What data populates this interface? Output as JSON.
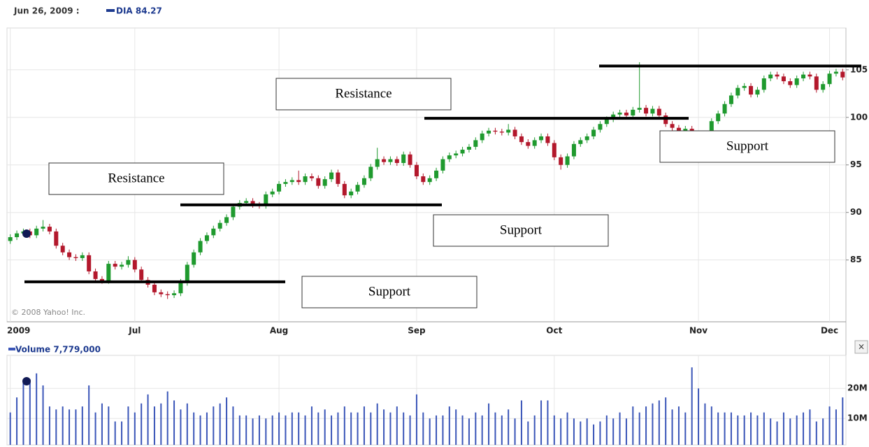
{
  "header": {
    "date": "Jun 26, 2009 :",
    "symbol": "DIA 84.27"
  },
  "chart_data": [
    {
      "type": "candlestick",
      "up_color": "#1f9a2e",
      "down_color": "#b3182c",
      "grid": true,
      "copyright": "© 2008 Yahoo! Inc.",
      "categories": [
        "2009",
        null,
        null,
        null,
        null,
        null,
        null,
        null,
        null,
        null,
        null,
        null,
        null,
        null,
        null,
        null,
        null,
        null,
        null,
        "Jul",
        null,
        null,
        null,
        null,
        null,
        null,
        null,
        null,
        null,
        null,
        null,
        null,
        null,
        null,
        null,
        null,
        null,
        null,
        null,
        null,
        null,
        "Aug",
        null,
        null,
        null,
        null,
        null,
        null,
        null,
        null,
        null,
        null,
        null,
        null,
        null,
        null,
        null,
        null,
        null,
        null,
        null,
        null,
        "Sep",
        null,
        null,
        null,
        null,
        null,
        null,
        null,
        null,
        null,
        null,
        null,
        null,
        null,
        null,
        null,
        null,
        null,
        null,
        null,
        null,
        "Oct",
        null,
        null,
        null,
        null,
        null,
        null,
        null,
        null,
        null,
        null,
        null,
        null,
        null,
        null,
        null,
        null,
        null,
        null,
        null,
        null,
        null,
        "Nov",
        null,
        null,
        null,
        null,
        null,
        null,
        null,
        null,
        null,
        null,
        null,
        null,
        null,
        null,
        null,
        null,
        null,
        null,
        null,
        "Dec",
        null,
        null
      ],
      "open": [
        87.0,
        87.4,
        87.8,
        88.0,
        87.6,
        88.3,
        88.5,
        88.0,
        86.5,
        85.8,
        85.3,
        85.2,
        85.5,
        83.8,
        83.0,
        82.8,
        84.6,
        84.3,
        84.5,
        85.0,
        84.0,
        82.9,
        82.4,
        81.6,
        81.4,
        81.3,
        81.5,
        82.6,
        84.5,
        85.8,
        87.0,
        87.6,
        88.3,
        88.9,
        89.5,
        90.6,
        91.0,
        91.2,
        90.8,
        90.7,
        91.9,
        92.2,
        93.0,
        93.2,
        93.4,
        93.2,
        93.8,
        93.6,
        92.8,
        93.5,
        94.2,
        93.0,
        91.8,
        92.2,
        92.9,
        93.6,
        94.8,
        95.6,
        95.3,
        95.6,
        95.2,
        96.1,
        95.0,
        93.8,
        93.2,
        93.6,
        94.4,
        95.6,
        96.0,
        96.2,
        96.6,
        96.9,
        97.6,
        98.3,
        98.6,
        98.5,
        98.4,
        98.7,
        98.0,
        97.4,
        97.0,
        97.6,
        98.0,
        97.3,
        95.8,
        95.0,
        95.9,
        97.2,
        97.6,
        98.0,
        98.7,
        99.3,
        99.8,
        100.3,
        100.5,
        100.2,
        100.8,
        101.0,
        100.4,
        100.9,
        100.2,
        99.3,
        98.9,
        98.3,
        98.8,
        97.2,
        97.6,
        98.3,
        99.6,
        100.4,
        101.4,
        102.3,
        103.1,
        103.3,
        102.4,
        102.9,
        104.1,
        104.5,
        104.3,
        103.8,
        103.4,
        104.1,
        104.5,
        104.3,
        102.9,
        103.5,
        104.6,
        104.8
      ],
      "high": [
        87.7,
        88.1,
        88.3,
        88.3,
        88.6,
        89.2,
        88.8,
        88.3,
        86.8,
        86.1,
        85.6,
        85.8,
        85.8,
        84.1,
        83.3,
        84.9,
        84.9,
        84.8,
        85.4,
        85.3,
        84.3,
        83.2,
        82.7,
        81.9,
        81.7,
        81.8,
        83.0,
        84.8,
        86.1,
        87.3,
        87.9,
        88.6,
        89.2,
        89.8,
        90.9,
        91.3,
        91.5,
        91.5,
        91.1,
        92.2,
        92.5,
        93.3,
        93.5,
        93.7,
        94.4,
        94.1,
        94.1,
        93.9,
        93.8,
        94.5,
        94.5,
        93.3,
        92.5,
        93.2,
        93.9,
        95.1,
        96.8,
        95.9,
        95.9,
        95.9,
        96.4,
        96.4,
        95.3,
        94.1,
        93.9,
        94.7,
        95.9,
        96.3,
        96.5,
        96.9,
        97.2,
        97.9,
        98.6,
        98.9,
        98.9,
        98.8,
        99.3,
        99.0,
        98.3,
        97.7,
        97.9,
        98.3,
        98.3,
        97.6,
        96.1,
        96.2,
        97.5,
        97.9,
        98.3,
        99.0,
        99.6,
        100.1,
        100.6,
        100.8,
        100.8,
        101.1,
        105.8,
        101.3,
        101.2,
        101.2,
        100.5,
        99.6,
        99.2,
        99.1,
        99.1,
        97.9,
        98.6,
        99.9,
        100.7,
        101.7,
        102.6,
        103.4,
        103.6,
        103.6,
        103.2,
        104.4,
        104.8,
        104.8,
        104.6,
        104.1,
        104.4,
        104.8,
        104.8,
        104.6,
        103.8,
        104.9,
        105.1,
        105.1
      ],
      "low": [
        86.7,
        87.1,
        87.5,
        87.3,
        87.3,
        88.0,
        87.7,
        86.2,
        85.5,
        85.0,
        84.9,
        84.9,
        83.5,
        82.7,
        82.5,
        82.5,
        84.0,
        84.0,
        84.2,
        83.7,
        82.6,
        82.1,
        81.3,
        81.1,
        80.9,
        81.0,
        81.2,
        82.3,
        84.2,
        85.5,
        86.7,
        87.3,
        88.0,
        88.6,
        89.2,
        90.3,
        90.7,
        90.5,
        90.4,
        90.4,
        91.6,
        91.9,
        92.7,
        92.9,
        92.9,
        92.9,
        93.3,
        92.5,
        92.5,
        93.2,
        92.7,
        91.5,
        91.5,
        91.9,
        92.6,
        93.3,
        94.5,
        95.0,
        95.0,
        94.9,
        94.9,
        94.7,
        93.5,
        92.9,
        92.9,
        93.3,
        94.1,
        95.3,
        95.7,
        95.9,
        96.3,
        96.6,
        97.3,
        98.0,
        98.2,
        98.1,
        98.1,
        97.7,
        97.1,
        96.7,
        96.7,
        97.3,
        97.0,
        95.5,
        94.5,
        94.7,
        95.6,
        96.9,
        97.3,
        97.7,
        98.4,
        99.0,
        99.5,
        100.0,
        99.9,
        99.9,
        100.5,
        100.1,
        100.1,
        99.9,
        99.0,
        98.6,
        98.0,
        98.0,
        96.9,
        96.9,
        97.3,
        98.0,
        99.3,
        100.1,
        101.1,
        102.0,
        102.8,
        102.1,
        102.1,
        102.6,
        103.8,
        104.0,
        103.5,
        103.1,
        103.1,
        103.8,
        104.0,
        102.6,
        102.6,
        103.2,
        104.3,
        103.9
      ],
      "close": [
        87.4,
        87.8,
        88.0,
        87.6,
        88.3,
        88.5,
        88.0,
        86.5,
        85.8,
        85.3,
        85.2,
        85.5,
        83.8,
        83.0,
        82.8,
        84.6,
        84.3,
        84.5,
        85.0,
        84.0,
        82.9,
        82.4,
        81.6,
        81.4,
        81.3,
        81.5,
        82.6,
        84.5,
        85.8,
        87.0,
        87.6,
        88.3,
        88.9,
        89.5,
        90.6,
        91.0,
        91.2,
        90.8,
        90.7,
        91.9,
        92.2,
        93.0,
        93.2,
        93.4,
        93.2,
        93.8,
        93.6,
        92.8,
        93.5,
        94.2,
        93.0,
        91.8,
        92.2,
        92.9,
        93.6,
        94.8,
        95.6,
        95.3,
        95.6,
        95.2,
        96.1,
        95.0,
        93.8,
        93.2,
        93.6,
        94.4,
        95.6,
        96.0,
        96.2,
        96.6,
        96.9,
        97.6,
        98.3,
        98.6,
        98.5,
        98.4,
        98.7,
        98.0,
        97.4,
        97.0,
        97.6,
        98.0,
        97.3,
        95.8,
        95.0,
        95.9,
        97.2,
        97.6,
        98.0,
        98.7,
        99.3,
        99.8,
        100.3,
        100.5,
        100.2,
        100.8,
        101.0,
        100.4,
        100.9,
        100.2,
        99.3,
        98.9,
        98.3,
        98.8,
        97.2,
        97.6,
        98.3,
        99.6,
        100.4,
        101.4,
        102.3,
        103.1,
        103.3,
        102.4,
        102.9,
        104.1,
        104.5,
        104.3,
        103.8,
        103.4,
        104.1,
        104.5,
        104.3,
        102.9,
        103.5,
        104.6,
        104.8,
        104.2
      ],
      "ylim": [
        78.5,
        109.4
      ],
      "yticks": [
        85,
        90,
        95,
        100,
        105
      ],
      "levels": [
        82.7,
        90.8,
        99.9,
        105.4
      ],
      "annotations": [
        "Resistance",
        "Resistance",
        "Support",
        "Support",
        "Support"
      ]
    },
    {
      "type": "bar",
      "title": "Volume 7,779,000",
      "color": "#3a55b8",
      "values": [
        12000000,
        17000000,
        23000000,
        23000000,
        25000000,
        21000000,
        14000000,
        13000000,
        14000000,
        13000000,
        13000000,
        14000000,
        21000000,
        12000000,
        15000000,
        14000000,
        9000000,
        9000000,
        14000000,
        12000000,
        15000000,
        18000000,
        14000000,
        15000000,
        19000000,
        16000000,
        13000000,
        15000000,
        12000000,
        11000000,
        12000000,
        14000000,
        15000000,
        17000000,
        14000000,
        11000000,
        11000000,
        10000000,
        11000000,
        10000000,
        11000000,
        12000000,
        11000000,
        12000000,
        12000000,
        11000000,
        14000000,
        12000000,
        13000000,
        11000000,
        12000000,
        14000000,
        12000000,
        12000000,
        14000000,
        12000000,
        15000000,
        13000000,
        12000000,
        14000000,
        12000000,
        11000000,
        18000000,
        12000000,
        10000000,
        11000000,
        11000000,
        14000000,
        13000000,
        11000000,
        10000000,
        12000000,
        11000000,
        15000000,
        12000000,
        11000000,
        13000000,
        10000000,
        16000000,
        9000000,
        11000000,
        16000000,
        16000000,
        11000000,
        10000000,
        12000000,
        10000000,
        9000000,
        10000000,
        8000000,
        9000000,
        11000000,
        10000000,
        12000000,
        10000000,
        14000000,
        12000000,
        14000000,
        15000000,
        16000000,
        17000000,
        13000000,
        14000000,
        12000000,
        27000000,
        20000000,
        15000000,
        14000000,
        12000000,
        12000000,
        12000000,
        11000000,
        11000000,
        12000000,
        11000000,
        12000000,
        10000000,
        9000000,
        12000000,
        10000000,
        11000000,
        12000000,
        13000000,
        9000000,
        10000000,
        14000000,
        13000000,
        17000000
      ],
      "ylim": [
        1200000,
        31000000
      ],
      "yticks": [
        {
          "value": 10000000,
          "label": "10M"
        },
        {
          "value": 20000000,
          "label": "20M"
        }
      ]
    }
  ]
}
